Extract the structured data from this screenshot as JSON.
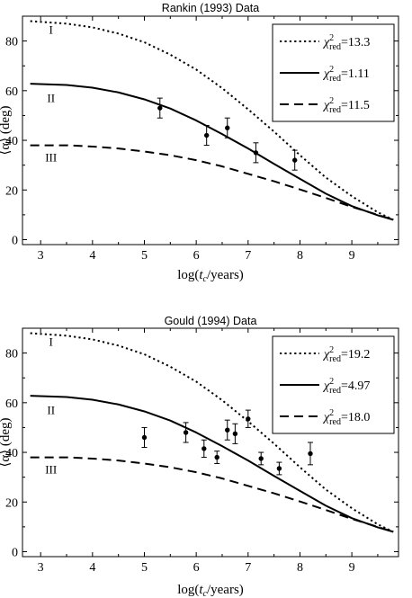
{
  "chart_data": [
    {
      "type": "line",
      "title": "Rankin (1993) Data",
      "xlabel_prefix": "log(",
      "xlabel_var": "t",
      "xlabel_sub": "c",
      "xlabel_suffix": "/years)",
      "ylabel": "⟨α⟩ (deg)",
      "xlim": [
        2.65,
        9.9
      ],
      "ylim": [
        -2,
        90
      ],
      "xticks": [
        3,
        4,
        5,
        6,
        7,
        8,
        9
      ],
      "yticks": [
        0,
        20,
        40,
        60,
        80
      ],
      "grid": false,
      "legend_position": "top-right",
      "curve_labels": [
        {
          "text": "I",
          "x": 3.2,
          "y": 83
        },
        {
          "text": "II",
          "x": 3.2,
          "y": 55.5
        },
        {
          "text": "III",
          "x": 3.2,
          "y": 31.5
        }
      ],
      "series": [
        {
          "name": "χ²red=13.3",
          "legend_var": "χ",
          "legend_sup": "2",
          "legend_sub": "red",
          "legend_value": "=13.3",
          "style": "dotted",
          "x": [
            2.8,
            3.5,
            4.0,
            4.5,
            5.0,
            5.5,
            6.0,
            6.5,
            7.0,
            7.5,
            8.0,
            8.5,
            9.0,
            9.5,
            9.8
          ],
          "y": [
            88,
            87,
            85.5,
            83,
            79.5,
            74.5,
            68.5,
            61,
            52.5,
            43.5,
            34,
            25,
            17.5,
            11,
            8
          ]
        },
        {
          "name": "χ²red=1.11",
          "legend_var": "χ",
          "legend_sup": "2",
          "legend_sub": "red",
          "legend_value": "=1.11",
          "style": "solid",
          "x": [
            2.8,
            3.5,
            4.0,
            4.5,
            5.0,
            5.5,
            6.0,
            6.5,
            7.0,
            7.5,
            8.0,
            8.5,
            9.0,
            9.5,
            9.8
          ],
          "y": [
            62.8,
            62.3,
            61.2,
            59.3,
            56.5,
            52.8,
            48,
            42.5,
            36.7,
            30.5,
            24.5,
            18.5,
            13.5,
            9.8,
            8
          ]
        },
        {
          "name": "χ²red=11.5",
          "legend_var": "χ",
          "legend_sup": "2",
          "legend_sub": "red",
          "legend_value": "=11.5",
          "style": "dashed",
          "x": [
            2.8,
            3.5,
            4.0,
            4.5,
            5.0,
            5.5,
            6.0,
            6.5,
            7.0,
            7.5,
            8.0,
            8.5,
            9.0,
            9.5,
            9.8
          ],
          "y": [
            38,
            38,
            37.5,
            36.7,
            35.5,
            34,
            32,
            29.5,
            26.5,
            23.5,
            20.2,
            16.8,
            13.2,
            10,
            8
          ]
        }
      ],
      "points": [
        {
          "x": 5.3,
          "y": 53,
          "ylo": 49,
          "yhi": 57
        },
        {
          "x": 6.2,
          "y": 42,
          "ylo": 38,
          "yhi": 46
        },
        {
          "x": 6.6,
          "y": 45,
          "ylo": 41,
          "yhi": 49
        },
        {
          "x": 7.15,
          "y": 35,
          "ylo": 31,
          "yhi": 39
        },
        {
          "x": 7.9,
          "y": 32,
          "ylo": 28,
          "yhi": 36
        }
      ]
    },
    {
      "type": "line",
      "title": "Gould (1994) Data",
      "xlabel_prefix": "log(",
      "xlabel_var": "t",
      "xlabel_sub": "c",
      "xlabel_suffix": "/years)",
      "ylabel": "⟨α⟩ (deg)",
      "xlim": [
        2.65,
        9.9
      ],
      "ylim": [
        -2,
        90
      ],
      "xticks": [
        3,
        4,
        5,
        6,
        7,
        8,
        9
      ],
      "yticks": [
        0,
        20,
        40,
        60,
        80
      ],
      "grid": false,
      "legend_position": "top-right",
      "curve_labels": [
        {
          "text": "I",
          "x": 3.2,
          "y": 83
        },
        {
          "text": "II",
          "x": 3.2,
          "y": 55.5
        },
        {
          "text": "III",
          "x": 3.2,
          "y": 31.5
        }
      ],
      "series": [
        {
          "name": "χ²red=19.2",
          "legend_var": "χ",
          "legend_sup": "2",
          "legend_sub": "red",
          "legend_value": "=19.2",
          "style": "dotted",
          "x": [
            2.8,
            3.5,
            4.0,
            4.5,
            5.0,
            5.5,
            6.0,
            6.5,
            7.0,
            7.5,
            8.0,
            8.5,
            9.0,
            9.5,
            9.8
          ],
          "y": [
            88,
            87,
            85.5,
            83,
            79.5,
            74.5,
            68.5,
            61,
            52.5,
            43.5,
            34,
            25,
            17.5,
            11,
            8
          ]
        },
        {
          "name": "χ²red=4.97",
          "legend_var": "χ",
          "legend_sup": "2",
          "legend_sub": "red",
          "legend_value": "=4.97",
          "style": "solid",
          "x": [
            2.8,
            3.5,
            4.0,
            4.5,
            5.0,
            5.5,
            6.0,
            6.5,
            7.0,
            7.5,
            8.0,
            8.5,
            9.0,
            9.5,
            9.8
          ],
          "y": [
            62.8,
            62.3,
            61.2,
            59.3,
            56.5,
            52.8,
            48,
            42.5,
            36.7,
            30.5,
            24.5,
            18.5,
            13.5,
            9.8,
            8
          ]
        },
        {
          "name": "χ²red=18.0",
          "legend_var": "χ",
          "legend_sup": "2",
          "legend_sub": "red",
          "legend_value": "=18.0",
          "style": "dashed",
          "x": [
            2.8,
            3.5,
            4.0,
            4.5,
            5.0,
            5.5,
            6.0,
            6.5,
            7.0,
            7.5,
            8.0,
            8.5,
            9.0,
            9.5,
            9.8
          ],
          "y": [
            38,
            38,
            37.5,
            36.7,
            35.5,
            34,
            32,
            29.5,
            26.5,
            23.5,
            20.2,
            16.8,
            13.2,
            10,
            8
          ]
        }
      ],
      "points": [
        {
          "x": 5.0,
          "y": 46,
          "ylo": 42,
          "yhi": 50
        },
        {
          "x": 5.8,
          "y": 48,
          "ylo": 44,
          "yhi": 52
        },
        {
          "x": 6.15,
          "y": 41.5,
          "ylo": 38,
          "yhi": 45
        },
        {
          "x": 6.4,
          "y": 38,
          "ylo": 35.5,
          "yhi": 40.5
        },
        {
          "x": 6.6,
          "y": 49,
          "ylo": 45,
          "yhi": 53
        },
        {
          "x": 6.75,
          "y": 47.5,
          "ylo": 43.5,
          "yhi": 51.5
        },
        {
          "x": 7.0,
          "y": 53.5,
          "ylo": 50,
          "yhi": 57
        },
        {
          "x": 7.25,
          "y": 37.5,
          "ylo": 35,
          "yhi": 40
        },
        {
          "x": 7.6,
          "y": 33.5,
          "ylo": 31,
          "yhi": 36
        },
        {
          "x": 8.2,
          "y": 39.5,
          "ylo": 35,
          "yhi": 44
        }
      ]
    }
  ]
}
